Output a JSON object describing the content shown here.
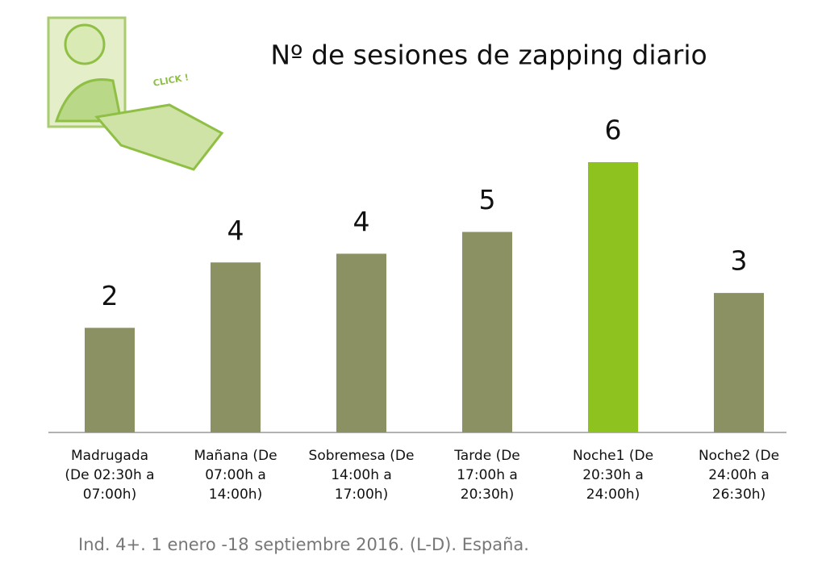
{
  "chart_data": {
    "type": "bar",
    "title": "Nº de sesiones de zapping diario",
    "categories": [
      "Madrugada\n(De 02:30h a\n07:00h)",
      "Mañana (De\n07:00h a\n14:00h)",
      "Sobremesa (De\n14:00h a\n17:00h)",
      "Tarde (De\n17:00h a\n20:30h)",
      "Noche1 (De\n20:30h a\n24:00h)",
      "Noche2 (De\n24:00h a\n26:30h)"
    ],
    "values": [
      2.4,
      3.9,
      4.1,
      4.6,
      6.2,
      3.2
    ],
    "value_labels": [
      "2",
      "4",
      "4",
      "5",
      "6",
      "3"
    ],
    "colors": [
      "#8c9163",
      "#8c9163",
      "#8c9163",
      "#8c9163",
      "#8dc21f",
      "#8c9163"
    ],
    "ylim": [
      0,
      6.2
    ],
    "footnote": "Ind. 4+. 1 enero -18 septiembre 2016. (L-D). España.",
    "illustration_text": "CLICK !"
  }
}
